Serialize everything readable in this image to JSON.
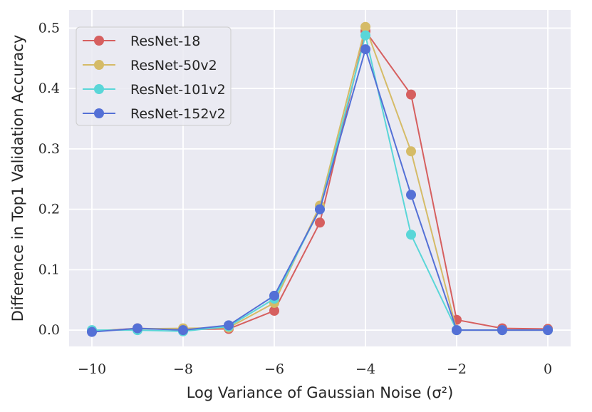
{
  "chart_data": {
    "type": "line",
    "xlabel": "Log Variance of Gaussian Noise (σ²)",
    "ylabel": "Difference in Top1 Validation Accuracy",
    "xlim": [
      -10.5,
      0.5
    ],
    "ylim": [
      -0.027,
      0.53
    ],
    "x_ticks": [
      -10,
      -8,
      -6,
      -4,
      -2,
      0
    ],
    "x_tick_labels": [
      "−10",
      "−8",
      "−6",
      "−4",
      "−2",
      "0"
    ],
    "y_ticks": [
      0.0,
      0.1,
      0.2,
      0.3,
      0.4,
      0.5
    ],
    "y_tick_labels": [
      "0.0",
      "0.1",
      "0.2",
      "0.3",
      "0.4",
      "0.5"
    ],
    "grid": true,
    "legend_position": "top-left",
    "x": [
      -10,
      -9,
      -8,
      -7,
      -6,
      -5,
      -4,
      -3,
      -2,
      -1,
      0
    ],
    "series": [
      {
        "name": "ResNet-18",
        "color": "#d65f5f",
        "values": [
          -0.002,
          0.003,
          0.001,
          0.002,
          0.032,
          0.178,
          0.495,
          0.39,
          0.017,
          0.003,
          0.002
        ]
      },
      {
        "name": "ResNet-50v2",
        "color": "#d5bb67",
        "values": [
          -0.001,
          0.002,
          0.003,
          0.004,
          0.045,
          0.206,
          0.502,
          0.296,
          0.0,
          0.0,
          0.0
        ]
      },
      {
        "name": "ResNet-101v2",
        "color": "#5ad6d8",
        "values": [
          0.0,
          0.0,
          -0.002,
          0.006,
          0.052,
          0.2,
          0.488,
          0.158,
          0.0,
          0.0,
          0.0
        ]
      },
      {
        "name": "ResNet-152v2",
        "color": "#5470d6",
        "values": [
          -0.003,
          0.003,
          0.0,
          0.008,
          0.057,
          0.2,
          0.465,
          0.224,
          0.0,
          0.0,
          0.0
        ]
      }
    ]
  }
}
